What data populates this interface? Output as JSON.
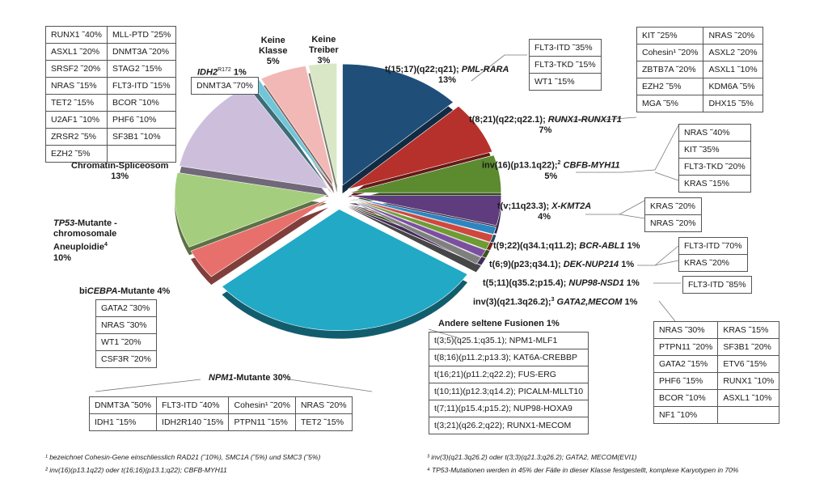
{
  "chart_data": {
    "type": "pie",
    "slices": [
      {
        "key": "pml",
        "label": "t(15;17)(q22;q21); PML-RARA",
        "pct": "13%",
        "value": 13,
        "color": "#1f4e79"
      },
      {
        "key": "runx1",
        "label": "t(8;21)(q22;q22.1); RUNX1-RUNX1T1",
        "pct": "7%",
        "value": 7,
        "color": "#b7312c"
      },
      {
        "key": "cbfb",
        "label": "inv(16)(p13.1q22); CBFB-MYH11",
        "pct": "5%",
        "value": 5,
        "color": "#5b8a2f"
      },
      {
        "key": "kmt2a",
        "label": "t(v;11q23.3); X-KMT2A",
        "pct": "4%",
        "value": 4,
        "color": "#5e3c7d"
      },
      {
        "key": "bcr",
        "label": "t(9;22)(q34.1;q11.2); BCR-ABL1",
        "pct": "1%",
        "value": 1,
        "color": "#2e86c1"
      },
      {
        "key": "dek",
        "label": "t(6;9)(p23;q34.1); DEK-NUP214",
        "pct": "1%",
        "value": 1,
        "color": "#d0473d"
      },
      {
        "key": "nup98",
        "label": "t(5;11)(q35.2;p15.4); NUP98-NSD1",
        "pct": "1%",
        "value": 1,
        "color": "#6d9b34"
      },
      {
        "key": "mecom",
        "label": "inv(3)(q21.3q26.2); GATA2,MECOM",
        "pct": "1%",
        "value": 1,
        "color": "#7b4fa0"
      },
      {
        "key": "rare",
        "label": "Andere seltene Fusionen",
        "pct": "1%",
        "value": 1,
        "color": "#7f7f7f"
      },
      {
        "key": "npm1",
        "label": "NPM1-Mutante",
        "pct": "30%",
        "value": 30,
        "color": "#21a9c6"
      },
      {
        "key": "cebpa",
        "label": "biCEBPA-Mutante",
        "pct": "4%",
        "value": 4,
        "color": "#e8706c"
      },
      {
        "key": "tp53",
        "label": "TP53-Mutante - chromosomale Aneuploidie",
        "pct": "10%",
        "value": 10,
        "color": "#a5cd7e"
      },
      {
        "key": "chrom",
        "label": "Chromatin-Spliceosom",
        "pct": "13%",
        "value": 13,
        "color": "#cdbfdc"
      },
      {
        "key": "idh2",
        "label": "IDH2 R172",
        "pct": "1%",
        "value": 1,
        "color": "#6fc6d8"
      },
      {
        "key": "keineklasse",
        "label": "Keine Klasse",
        "pct": "5%",
        "value": 5,
        "color": "#f2b8b6"
      },
      {
        "key": "keinetreiber",
        "label": "Keine Treiber",
        "pct": "3%",
        "value": 3,
        "color": "#d9e7c6"
      }
    ]
  },
  "labels": {
    "pml_1": "t(15;17)(q22;q21); ",
    "pml_2": "PML-RARA",
    "pml_pct": "13%",
    "runx1_1": "t(8;21)(q22;q22.1); ",
    "runx1_2": "RUNX1-RUNX1T1",
    "runx1_pct": "7%",
    "cbfb_1": "inv(16)(p13.1q22);",
    "cbfb_sup": "2",
    "cbfb_2": " CBFB-MYH11",
    "cbfb_pct": "5%",
    "kmt2a_1": "t(v;11q23.3); ",
    "kmt2a_2": "X-KMT2A",
    "kmt2a_pct": "4%",
    "bcr_1": "t(9;22)(q34.1;q11.2); ",
    "bcr_2": "BCR-ABL1",
    "bcr_pct": " 1%",
    "dek_1": "t(6;9)(p23;q34.1); ",
    "dek_2": "DEK-NUP214",
    "dek_pct": " 1%",
    "nup98_1": "t(5;11)(q35.2;p15.4); ",
    "nup98_2": "NUP98-NSD1",
    "nup98_pct": " 1%",
    "mecom_1": "inv(3)(q21.3q26.2);",
    "mecom_sup": "3",
    "mecom_2": " GATA2,MECOM",
    "mecom_pct": " 1%",
    "rare": "Andere seltene Fusionen 1%",
    "npm1_1": "NPM1",
    "npm1_2": "-Mutante 30%",
    "cebpa_1": "bi",
    "cebpa_2": "CEBPA",
    "cebpa_3": "-Mutante 4%",
    "tp53_1": "TP53",
    "tp53_2": "-Mutante -",
    "tp53_3": "chromosomale",
    "tp53_4": "Aneuploidie",
    "tp53_sup": "4",
    "tp53_pct": "10%",
    "chrom_1": "Chromatin-Spliceosom",
    "chrom_pct": "13%",
    "idh2_1": "IDH2",
    "idh2_sup": "R172",
    "idh2_pct": " 1%",
    "keineklasse_1": "Keine",
    "keineklasse_2": "Klasse",
    "keineklasse_pct": "5%",
    "keinetreiber_1": "Keine",
    "keinetreiber_2": "Treiber",
    "keinetreiber_pct": "3%"
  },
  "tables": {
    "chrom": [
      [
        "RUNX1 ˜40%",
        "MLL-PTD ˜25%"
      ],
      [
        "ASXL1 ˜20%",
        "DNMT3A ˜20%"
      ],
      [
        "SRSF2 ˜20%",
        "STAG2 ˜15%"
      ],
      [
        "NRAS ˜15%",
        "FLT3-ITD ˜15%"
      ],
      [
        "TET2 ˜15%",
        "BCOR ˜10%"
      ],
      [
        "U2AF1 ˜10%",
        "PHF6 ˜10%"
      ],
      [
        "ZRSR2 ˜5%",
        "SF3B1 ˜10%"
      ],
      [
        "EZH2 ˜5%",
        ""
      ]
    ],
    "idh2": "DNMT3A ˜70%",
    "pml": [
      "FLT3-ITD ˜35%",
      "FLT3-TKD ˜15%",
      "WT1 ˜15%"
    ],
    "runx1": [
      [
        "KIT ˜25%",
        "NRAS ˜20%"
      ],
      [
        "Cohesin¹ ˜20%",
        "ASXL2 ˜20%"
      ],
      [
        "ZBTB7A ˜20%",
        "ASXL1 ˜10%"
      ],
      [
        "EZH2 ˜5%",
        "KDM6A ˜5%"
      ],
      [
        "MGA ˜5%",
        "DHX15 ˜5%"
      ]
    ],
    "cbfb": [
      "NRAS ˜40%",
      "KIT ˜35%",
      "FLT3-TKD ˜20%",
      "KRAS ˜15%"
    ],
    "kmt2a": [
      "KRAS ˜20%",
      "NRAS ˜20%"
    ],
    "dek": [
      "FLT3-ITD ˜70%",
      "KRAS ˜20%"
    ],
    "nup98": "FLT3-ITD ˜85%",
    "mecom": [
      [
        "NRAS ˜30%",
        "KRAS ˜15%"
      ],
      [
        "PTPN11 ˜20%",
        "SF3B1 ˜20%"
      ],
      [
        "GATA2 ˜15%",
        "ETV6 ˜15%"
      ],
      [
        "PHF6 ˜15%",
        "RUNX1 ˜10%"
      ],
      [
        "BCOR ˜10%",
        "ASXL1 ˜10%"
      ],
      [
        "NF1 ˜10%",
        ""
      ]
    ],
    "rare": [
      "t(3;5)(q25.1;q35.1);  NPM1-MLF1",
      "t(8;16)(p11.2;p13.3);  KAT6A-CREBBP",
      "t(16;21)(p11.2;q22.2);  FUS-ERG",
      "t(10;11)(p12.3;q14.2);  PICALM-MLLT10",
      "t(7;11)(p15.4;p15.2);  NUP98-HOXA9",
      "t(3;21)(q26.2;q22);  RUNX1-MECOM"
    ],
    "cebpa": [
      "GATA2 ˜30%",
      "NRAS ˜30%",
      "WT1 ˜20%",
      "CSF3R ˜20%"
    ],
    "npm1": [
      [
        "DNMT3A ˜50%",
        "FLT3-ITD ˜40%",
        "Cohesin¹ ˜20%",
        "NRAS ˜20%"
      ],
      [
        "IDH1 ˜15%",
        "IDH2R140 ˜15%",
        "PTPN11 ˜15%",
        "TET2 ˜15%"
      ]
    ]
  },
  "footnotes": {
    "f1": "¹ bezeichnet Cohesin-Gene einschliesslich RAD21 (˜10%), SMC1A (˜5%) und SMC3 (˜5%)",
    "f2": "² inv(16)(p13.1q22) oder t(16;16)(p13.1;q22); CBFB-MYH11",
    "f3": "³ inv(3)(q21.3q26.2) oder t(3;3)(q21.3;q26.2); GATA2, MECOM(EVI1)",
    "f4": "⁴ TP53-Mutationen werden in 45% der Fälle in dieser Klasse festgestellt, komplexe Karyotypen in 70%"
  }
}
